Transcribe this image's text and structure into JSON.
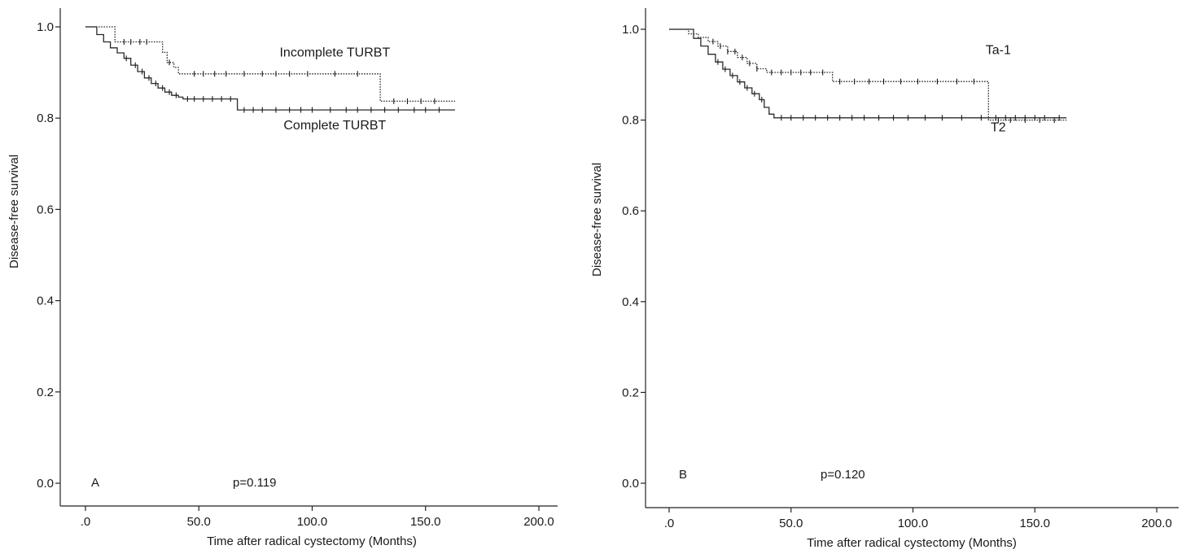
{
  "chart_data": [
    {
      "type": "line",
      "panel": "A",
      "xlabel": "Time after radical cystectomy (Months)",
      "ylabel": "Disease-free survival",
      "xlim": [
        0,
        200
      ],
      "ylim": [
        0,
        1
      ],
      "xticks": [
        ".0",
        "50.0",
        "100.0",
        "150.0",
        "200.0"
      ],
      "xtick_values": [
        0,
        50,
        100,
        150,
        200
      ],
      "yticks": [
        "0.0",
        "0.2",
        "0.4",
        "0.6",
        "0.8",
        "1.0"
      ],
      "ytick_values": [
        0,
        0.2,
        0.4,
        0.6,
        0.8,
        1.0
      ],
      "grid": false,
      "annotation": "p=0.119",
      "series": [
        {
          "name": "Incomplete TURBT",
          "style": "dotted",
          "label_at": [
            110,
            0.935
          ],
          "x": [
            0,
            13,
            30,
            34,
            36,
            39,
            41,
            130,
            163
          ],
          "y": [
            1.0,
            0.967,
            0.967,
            0.944,
            0.922,
            0.911,
            0.897,
            0.837,
            0.837
          ],
          "censor": [
            17,
            20,
            24,
            27,
            37,
            48,
            52,
            57,
            62,
            70,
            78,
            84,
            90,
            98,
            110,
            120,
            136,
            142,
            148,
            154
          ]
        },
        {
          "name": "Complete TURBT",
          "style": "solid",
          "label_at": [
            110,
            0.775
          ],
          "x": [
            0,
            5,
            8,
            11,
            14,
            17,
            20,
            23,
            26,
            29,
            32,
            35,
            38,
            41,
            43,
            67,
            163
          ],
          "y": [
            1.0,
            0.983,
            0.967,
            0.954,
            0.943,
            0.931,
            0.916,
            0.902,
            0.888,
            0.876,
            0.866,
            0.857,
            0.85,
            0.846,
            0.842,
            0.818,
            0.818
          ],
          "censor": [
            18,
            22,
            25,
            28,
            31,
            34,
            37,
            40,
            45,
            48,
            52,
            56,
            60,
            64,
            70,
            74,
            78,
            84,
            90,
            95,
            100,
            108,
            115,
            120,
            126,
            132,
            138,
            145,
            150,
            156
          ]
        }
      ]
    },
    {
      "type": "line",
      "panel": "B",
      "xlabel": "Time after radical cystectomy (Months)",
      "ylabel": "Disease-free survival",
      "xlim": [
        0,
        200
      ],
      "ylim": [
        0,
        1
      ],
      "xticks": [
        ".0",
        "50.0",
        "100.0",
        "150.0",
        "200.0"
      ],
      "xtick_values": [
        0,
        50,
        100,
        150,
        200
      ],
      "yticks": [
        "0.0",
        "0.2",
        "0.4",
        "0.6",
        "0.8",
        "1.0"
      ],
      "ytick_values": [
        0,
        0.2,
        0.4,
        0.6,
        0.8,
        1.0
      ],
      "grid": false,
      "annotation": "p=0.120",
      "series": [
        {
          "name": "Ta-1",
          "style": "dotted",
          "label_at": [
            135,
            0.945
          ],
          "x": [
            0,
            8,
            12,
            16,
            20,
            24,
            28,
            32,
            36,
            40,
            67,
            131,
            163
          ],
          "y": [
            1.0,
            0.99,
            0.982,
            0.973,
            0.963,
            0.951,
            0.938,
            0.925,
            0.913,
            0.905,
            0.885,
            0.8,
            0.8
          ],
          "censor": [
            18,
            21,
            24,
            27,
            30,
            33,
            36,
            42,
            46,
            50,
            54,
            58,
            63,
            70,
            76,
            82,
            88,
            95,
            102,
            110,
            118,
            125,
            135,
            140,
            146,
            152,
            158
          ]
        },
        {
          "name": "T2",
          "style": "solid",
          "label_at": [
            135,
            0.775
          ],
          "x": [
            0,
            10,
            13,
            16,
            19,
            22,
            25,
            28,
            31,
            34,
            37,
            39,
            41,
            43,
            163
          ],
          "y": [
            1.0,
            0.98,
            0.963,
            0.945,
            0.928,
            0.912,
            0.898,
            0.884,
            0.871,
            0.858,
            0.845,
            0.828,
            0.813,
            0.805,
            0.805
          ],
          "censor": [
            20,
            23,
            26,
            29,
            32,
            35,
            38,
            46,
            50,
            55,
            60,
            65,
            70,
            75,
            80,
            86,
            92,
            98,
            105,
            112,
            120,
            128,
            134,
            138,
            142,
            146,
            150,
            154,
            160
          ]
        }
      ]
    }
  ]
}
